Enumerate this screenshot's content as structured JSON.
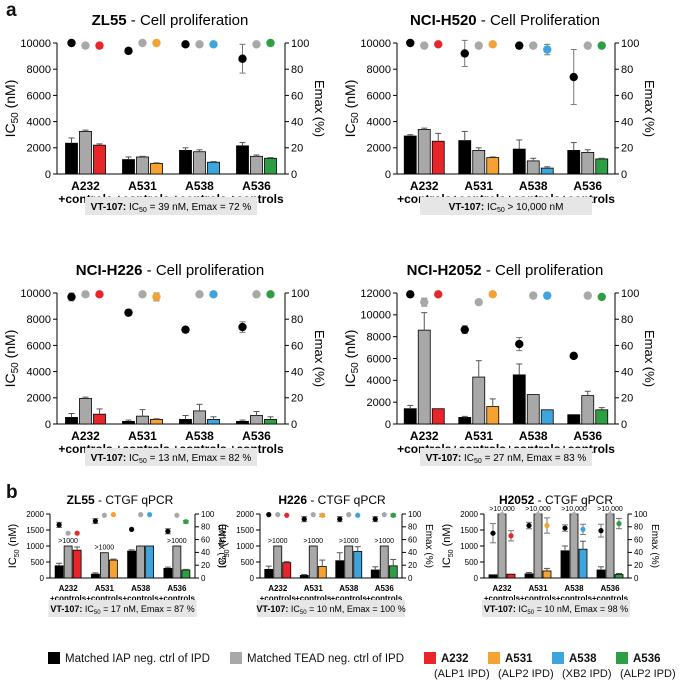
{
  "panel_labels": {
    "a": "a",
    "b": "b"
  },
  "colors": {
    "matched_iap": "#000000",
    "matched_tead": "#a8a8a8",
    "A232": "#e8262a",
    "A531": "#f4a233",
    "A538": "#3ea4dc",
    "A536": "#2e9e44"
  },
  "legend": [
    {
      "label": "Matched IAP neg. ctrl of IPD",
      "color_key": "matched_iap"
    },
    {
      "label": "Matched TEAD neg. ctrl of IPD",
      "color_key": "matched_tead"
    },
    {
      "label": "A232",
      "sub": "(ALP1 IPD)",
      "color_key": "A232"
    },
    {
      "label": "A531",
      "sub": "(ALP2 IPD)",
      "color_key": "A531"
    },
    {
      "label": "A538",
      "sub": "(XB2 IPD)",
      "color_key": "A538"
    },
    {
      "label": "A536",
      "sub": "(ALP2 IPD)",
      "color_key": "A536"
    }
  ],
  "chart_data": [
    {
      "type": "bar",
      "title_bold": "ZL55",
      "title_rest": " - Cell proliferation",
      "ylabel_main": "IC",
      "ylabel_sub": "50",
      "ylabel_unit": " (nM)",
      "y2label": "Emax (%)",
      "ylim": [
        0,
        10000
      ],
      "y_ticks": [
        "0",
        "2000",
        "4000",
        "6000",
        "8000",
        "10000"
      ],
      "y2lim": [
        0,
        100
      ],
      "y2_ticks": [
        "0",
        "20",
        "40",
        "60",
        "80",
        "100"
      ],
      "categories": [
        "A232",
        "A531",
        "A538",
        "A536"
      ],
      "cat_sub": "+controls",
      "series_keys": [
        "matched_iap",
        "matched_tead",
        "compound"
      ],
      "bars": [
        [
          2350,
          3250,
          2200
        ],
        [
          1100,
          1300,
          800
        ],
        [
          1800,
          1700,
          900
        ],
        [
          2150,
          1350,
          1200
        ]
      ],
      "bar_err": [
        [
          400,
          100,
          100
        ],
        [
          200,
          50,
          50
        ],
        [
          200,
          150,
          50
        ],
        [
          250,
          100,
          50
        ]
      ],
      "dots": [
        [
          100,
          98,
          98
        ],
        [
          94,
          100,
          100
        ],
        [
          99,
          99,
          99
        ],
        [
          88,
          99,
          100
        ]
      ],
      "dot_err": [
        [
          0,
          0,
          0
        ],
        [
          1.5,
          0,
          0
        ],
        [
          0,
          0,
          0
        ],
        [
          11,
          0,
          0
        ]
      ],
      "above_labels": [],
      "note_prefix": "VT-107:",
      "note_ic": "IC",
      "note_sub": "50",
      "note_rest": " = 39 nM, Emax = 72 %"
    },
    {
      "type": "bar",
      "title_bold": "NCI-H520",
      "title_rest": " - Cell Proliferation",
      "ylabel_main": "IC",
      "ylabel_sub": "50",
      "ylabel_unit": " (nM)",
      "y2label": "Emax (%)",
      "ylim": [
        0,
        10000
      ],
      "y_ticks": [
        "0",
        "2000",
        "4000",
        "6000",
        "8000",
        "10000"
      ],
      "y2lim": [
        0,
        100
      ],
      "y2_ticks": [
        "0",
        "20",
        "40",
        "60",
        "80",
        "100"
      ],
      "categories": [
        "A232",
        "A531",
        "A538",
        "A536"
      ],
      "cat_sub": "+controls",
      "series_keys": [
        "matched_iap",
        "matched_tead",
        "compound"
      ],
      "bars": [
        [
          2900,
          3400,
          2500
        ],
        [
          2550,
          1800,
          1250
        ],
        [
          1900,
          1000,
          450
        ],
        [
          1800,
          1650,
          1150
        ]
      ],
      "bar_err": [
        [
          100,
          100,
          600
        ],
        [
          700,
          200,
          50
        ],
        [
          700,
          200,
          100
        ],
        [
          600,
          200,
          50
        ]
      ],
      "dots": [
        [
          100,
          98,
          99
        ],
        [
          92,
          98,
          99
        ],
        [
          98,
          98,
          95
        ],
        [
          74,
          98,
          98
        ]
      ],
      "dot_err": [
        [
          0,
          0,
          0
        ],
        [
          10,
          0,
          0
        ],
        [
          0,
          0,
          4
        ],
        [
          21,
          0,
          0
        ]
      ],
      "above_labels": [],
      "note_prefix": "VT-107:",
      "note_ic": "IC",
      "note_sub": "50",
      "note_rest": " > 10,000 nM"
    },
    {
      "type": "bar",
      "title_bold": "NCI-H226",
      "title_rest": " - Cell proliferation",
      "ylabel_main": "IC",
      "ylabel_sub": "50",
      "ylabel_unit": " (nM)",
      "y2label": "Emax (%)",
      "ylim": [
        0,
        10000
      ],
      "y_ticks": [
        "0",
        "2000",
        "4000",
        "6000",
        "8000",
        "10000"
      ],
      "y2lim": [
        0,
        100
      ],
      "y2_ticks": [
        "0",
        "20",
        "40",
        "60",
        "80",
        "100"
      ],
      "categories": [
        "A232",
        "A531",
        "A538",
        "A536"
      ],
      "cat_sub": "+controls",
      "series_keys": [
        "matched_iap",
        "matched_tead",
        "compound"
      ],
      "bars": [
        [
          500,
          1950,
          750
        ],
        [
          200,
          600,
          350
        ],
        [
          350,
          1000,
          350
        ],
        [
          200,
          650,
          350
        ]
      ],
      "bar_err": [
        [
          300,
          100,
          400
        ],
        [
          100,
          500,
          50
        ],
        [
          300,
          500,
          200
        ],
        [
          100,
          300,
          200
        ]
      ],
      "dots": [
        [
          97,
          99,
          99
        ],
        [
          85,
          99,
          97
        ],
        [
          72,
          99,
          99
        ],
        [
          74,
          99,
          99
        ]
      ],
      "dot_err": [
        [
          3,
          0,
          0
        ],
        [
          0,
          0,
          3
        ],
        [
          0,
          0,
          0
        ],
        [
          4,
          0,
          0
        ]
      ],
      "above_labels": [],
      "note_prefix": "VT-107:",
      "note_ic": "IC",
      "note_sub": "50",
      "note_rest": " = 13 nM, Emax = 82 %"
    },
    {
      "type": "bar",
      "title_bold": "NCI-H2052",
      "title_rest": " - Cell proliferation",
      "ylabel_main": "IC",
      "ylabel_sub": "50",
      "ylabel_unit": " (nM)",
      "y2label": "Emax (%)",
      "ylim": [
        0,
        12000
      ],
      "y_ticks": [
        "0",
        "2000",
        "4000",
        "6000",
        "8000",
        "10000",
        "12000"
      ],
      "y2lim": [
        0,
        100
      ],
      "y2_ticks": [
        "0",
        "20",
        "40",
        "60",
        "80",
        "100"
      ],
      "categories": [
        "A232",
        "A531",
        "A538",
        "A536"
      ],
      "cat_sub": "+controls",
      "series_keys": [
        "matched_iap",
        "matched_tead",
        "compound"
      ],
      "bars": [
        [
          1400,
          8600,
          1400
        ],
        [
          600,
          4300,
          1600
        ],
        [
          4500,
          2700,
          1300
        ],
        [
          850,
          2600,
          1300
        ]
      ],
      "bar_err": [
        [
          300,
          1600,
          0
        ],
        [
          100,
          1500,
          700
        ],
        [
          1000,
          0,
          0
        ],
        [
          0,
          400,
          200
        ]
      ],
      "dots": [
        [
          99,
          93,
          99
        ],
        [
          72,
          93,
          99
        ],
        [
          61,
          98,
          98
        ],
        [
          52,
          98,
          97
        ]
      ],
      "dot_err": [
        [
          0,
          3,
          0
        ],
        [
          3,
          0,
          0
        ],
        [
          5,
          0,
          0
        ],
        [
          0,
          0,
          0
        ]
      ],
      "above_labels": [],
      "note_prefix": "VT-107:",
      "note_ic": "IC",
      "note_sub": "50",
      "note_rest": " = 27 nM, Emax = 83 %"
    },
    {
      "type": "bar",
      "title_bold": "ZL55",
      "title_rest": " - CTGF qPCR",
      "ylabel_main": "IC",
      "ylabel_sub": "50",
      "ylabel_unit": " (nM)",
      "y2label": "Emax (%)",
      "ylim": [
        0,
        2000
      ],
      "y_ticks": [
        "0",
        "500",
        "1000",
        "1500",
        "2000"
      ],
      "y2lim": [
        0,
        100
      ],
      "y2_ticks": [
        "0",
        "20",
        "40",
        "60",
        "80",
        "100"
      ],
      "categories": [
        "A232",
        "A531",
        "A538",
        "A536"
      ],
      "cat_sub": "+controls",
      "series_keys": [
        "matched_iap",
        "matched_tead",
        "compound"
      ],
      "bars": [
        [
          380,
          1000,
          870
        ],
        [
          120,
          790,
          560
        ],
        [
          840,
          1000,
          1000
        ],
        [
          300,
          1000,
          250
        ]
      ],
      "bar_err": [
        [
          80,
          0,
          100
        ],
        [
          40,
          0,
          30
        ],
        [
          40,
          0,
          0
        ],
        [
          40,
          0,
          20
        ]
      ],
      "dots": [
        [
          83,
          70,
          70
        ],
        [
          89,
          98,
          99
        ],
        [
          76,
          99,
          99
        ],
        [
          73,
          98,
          88
        ]
      ],
      "dot_err": [
        [
          4,
          0,
          0
        ],
        [
          4,
          0,
          0
        ],
        [
          0,
          0,
          0
        ],
        [
          4,
          0,
          2
        ]
      ],
      "above_labels": [
        ">1000",
        ">1000",
        "",
        ">1000"
      ],
      "note_prefix": "VT-107:",
      "note_ic": "IC",
      "note_sub": "50",
      "note_rest": " = 17 nM, Emax = 87 %"
    },
    {
      "type": "bar",
      "title_bold": "H226",
      "title_rest": " - CTGF qPCR",
      "ylabel_main": "IC",
      "ylabel_sub": "50",
      "ylabel_unit": " (nM)",
      "y2label": "Emax (%)",
      "ylim": [
        0,
        2000
      ],
      "y_ticks": [
        "0",
        "500",
        "1000",
        "1500",
        "2000"
      ],
      "y2lim": [
        0,
        100
      ],
      "y2_ticks": [
        "0",
        "20",
        "40",
        "60",
        "80",
        "100"
      ],
      "categories": [
        "A232",
        "A531",
        "A538",
        "A536"
      ],
      "cat_sub": "+controls",
      "series_keys": [
        "matched_iap",
        "matched_tead",
        "compound"
      ],
      "bars": [
        [
          270,
          1000,
          480
        ],
        [
          80,
          1000,
          360
        ],
        [
          540,
          1000,
          830
        ],
        [
          250,
          1000,
          380
        ]
      ],
      "bar_err": [
        [
          100,
          0,
          30
        ],
        [
          30,
          0,
          200
        ],
        [
          250,
          0,
          150
        ],
        [
          100,
          0,
          200
        ]
      ],
      "dots": [
        [
          99,
          99,
          98
        ],
        [
          92,
          99,
          98
        ],
        [
          92,
          99,
          98
        ],
        [
          92,
          99,
          98
        ]
      ],
      "dot_err": [
        [
          0,
          0,
          0
        ],
        [
          4,
          0,
          2
        ],
        [
          4,
          0,
          0
        ],
        [
          4,
          0,
          2
        ]
      ],
      "above_labels": [
        ">1000",
        ">1000",
        ">1000",
        ">1000"
      ],
      "note_prefix": "VT-107:",
      "note_ic": "IC",
      "note_sub": "50",
      "note_rest": " = 10 nM, Emax = 100 %"
    },
    {
      "type": "bar",
      "title_bold": "H2052",
      "title_rest": " - CTGF qPCR",
      "ylabel_main": "IC",
      "ylabel_sub": "50",
      "ylabel_unit": " (nM)",
      "y2label": "Emax (%)",
      "ylim": [
        0,
        2000
      ],
      "y_ticks": [
        "0",
        "500",
        "1000",
        "1500",
        "2000"
      ],
      "y2lim": [
        0,
        100
      ],
      "y2_ticks": [
        "0",
        "20",
        "40",
        "60",
        "80",
        "100"
      ],
      "categories": [
        "A232",
        "A531",
        "A538",
        "A536"
      ],
      "cat_sub": "+controls",
      "series_keys": [
        "matched_iap",
        "matched_tead",
        "compound"
      ],
      "bars": [
        [
          100,
          2000,
          120
        ],
        [
          130,
          2000,
          220
        ],
        [
          850,
          2000,
          900
        ],
        [
          250,
          2000,
          110
        ]
      ],
      "bar_err": [
        [
          0,
          0,
          0
        ],
        [
          40,
          0,
          80
        ],
        [
          150,
          0,
          250
        ],
        [
          100,
          0,
          30
        ]
      ],
      "dots": [
        [
          70,
          99,
          66
        ],
        [
          82,
          99,
          82
        ],
        [
          78,
          99,
          76
        ],
        [
          74,
          99,
          85
        ]
      ],
      "dot_err": [
        [
          15,
          0,
          8
        ],
        [
          5,
          0,
          12
        ],
        [
          5,
          0,
          8
        ],
        [
          10,
          0,
          8
        ]
      ],
      "above_labels": [
        ">10,000",
        ">10,000",
        ">10,000",
        ">10,000"
      ],
      "note_prefix": "VT-107:",
      "note_ic": "IC",
      "note_sub": "50",
      "note_rest": " = 10 nM, Emax = 98 %"
    }
  ]
}
